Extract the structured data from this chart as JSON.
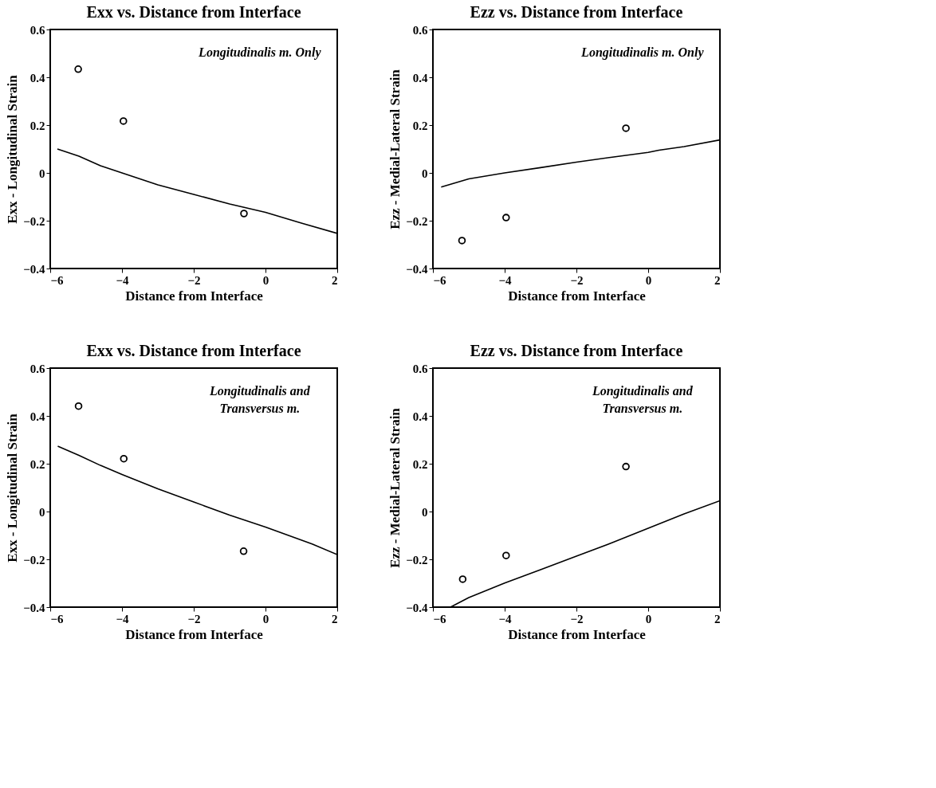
{
  "chart_data": [
    {
      "type": "scatter",
      "title": "Exx vs. Distance from Interface",
      "xlabel": "Distance from Interface",
      "ylabel": "Exx - Longitudinal Strain",
      "annotations": [
        "Longitudinalis m. Only"
      ],
      "xlim": [
        -6,
        2
      ],
      "xticks": [
        -6,
        -4,
        -2,
        0,
        2
      ],
      "ylim": [
        -0.4,
        0.6
      ],
      "yticks": [
        -0.4,
        -0.2,
        0,
        0.2,
        0.4,
        0.6
      ],
      "grid": false,
      "series": [
        {
          "type": "scatter",
          "color": "#000000",
          "marker": "circle",
          "x": [
            -5.22,
            -3.96,
            -0.6
          ],
          "values": [
            0.434,
            0.217,
            -0.17
          ]
        },
        {
          "type": "line",
          "color": "#000000",
          "marker": "none",
          "line_style": "solid",
          "x": [
            -5.8,
            -5.2,
            -4.6,
            -4,
            -3,
            -2,
            -1,
            0,
            1,
            2
          ],
          "values": [
            0.1,
            0.07,
            0.03,
            0.0,
            -0.05,
            -0.09,
            -0.13,
            -0.165,
            -0.21,
            -0.253
          ]
        }
      ]
    },
    {
      "type": "scatter",
      "title": "Ezz vs. Distance from Interface",
      "xlabel": "Distance from Interface",
      "ylabel": "Ezz - Medial-Lateral Strain",
      "annotations": [
        "Longitudinalis m. Only"
      ],
      "xlim": [
        -6,
        2
      ],
      "xticks": [
        -6,
        -4,
        -2,
        0,
        2
      ],
      "ylim": [
        -0.4,
        0.6
      ],
      "yticks": [
        -0.4,
        -0.2,
        0,
        0.2,
        0.4,
        0.6
      ],
      "grid": false,
      "series": [
        {
          "type": "scatter",
          "color": "#000000",
          "marker": "circle",
          "x": [
            -5.19,
            -3.96,
            -0.62
          ],
          "values": [
            -0.283,
            -0.187,
            0.187
          ]
        },
        {
          "type": "line",
          "color": "#000000",
          "marker": "none",
          "line_style": "solid",
          "x": [
            -5.77,
            -5,
            -4,
            -3,
            -2,
            -1,
            0,
            0.3,
            1,
            2
          ],
          "values": [
            -0.059,
            -0.025,
            0.0,
            0.022,
            0.045,
            0.066,
            0.086,
            0.095,
            0.11,
            0.138
          ]
        }
      ]
    },
    {
      "type": "scatter",
      "title": "Exx vs. Distance from Interface",
      "xlabel": "Distance from Interface",
      "ylabel": "Exx - Longitudinal Strain",
      "annotations": [
        "Longitudinalis and\nTransversus m."
      ],
      "xlim": [
        -6,
        2
      ],
      "xticks": [
        -6,
        -4,
        -2,
        0,
        2
      ],
      "ylim": [
        -0.4,
        0.6
      ],
      "yticks": [
        -0.4,
        -0.2,
        0,
        0.2,
        0.4,
        0.6
      ],
      "grid": false,
      "series": [
        {
          "type": "scatter",
          "color": "#000000",
          "marker": "circle",
          "x": [
            -5.21,
            -3.95,
            -0.61
          ],
          "values": [
            0.441,
            0.221,
            -0.166
          ]
        },
        {
          "type": "line",
          "color": "#000000",
          "marker": "none",
          "line_style": "solid",
          "x": [
            -5.79,
            -5.2,
            -4.6,
            -4,
            -3,
            -2,
            -1,
            0,
            1.3,
            2
          ],
          "values": [
            0.273,
            0.235,
            0.193,
            0.155,
            0.095,
            0.04,
            -0.015,
            -0.065,
            -0.136,
            -0.18
          ]
        }
      ]
    },
    {
      "type": "scatter",
      "title": "Ezz vs. Distance from Interface",
      "xlabel": "Distance from Interface",
      "ylabel": "Ezz - Medial-Lateral Strain",
      "annotations": [
        "Longitudinalis and\nTransversus m."
      ],
      "xlim": [
        -6,
        2
      ],
      "xticks": [
        -6,
        -4,
        -2,
        0,
        2
      ],
      "ylim": [
        -0.4,
        0.6
      ],
      "yticks": [
        -0.4,
        -0.2,
        0,
        0.2,
        0.4,
        0.6
      ],
      "grid": false,
      "series": [
        {
          "type": "scatter",
          "color": "#000000",
          "marker": "circle",
          "x": [
            -5.17,
            -3.96,
            -0.62
          ],
          "values": [
            -0.283,
            -0.184,
            0.188
          ]
        },
        {
          "type": "line",
          "color": "#000000",
          "marker": "none",
          "line_style": "solid",
          "x": [
            -5.51,
            -5,
            -4,
            -3,
            -2,
            -1,
            0,
            1,
            2
          ],
          "values": [
            -0.4,
            -0.36,
            -0.299,
            -0.243,
            -0.187,
            -0.13,
            -0.07,
            -0.01,
            0.045
          ]
        }
      ]
    }
  ]
}
